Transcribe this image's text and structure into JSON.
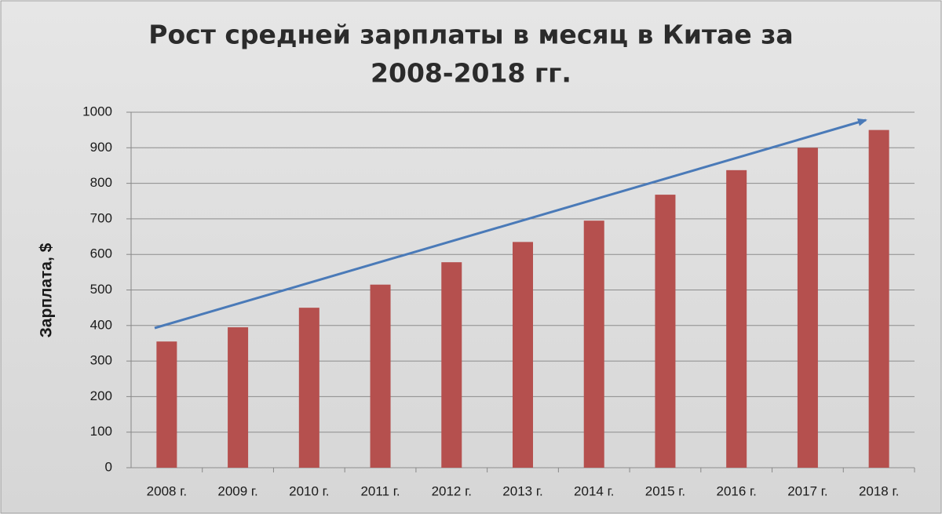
{
  "chart_data": {
    "type": "bar",
    "title": [
      "Рост средней зарплаты в месяц в Китае за",
      "2008-2018 гг."
    ],
    "y_label": "Зарплата, $",
    "categories": [
      "2008 г.",
      "2009 г.",
      "2010 г.",
      "2011 г.",
      "2012 г.",
      "2013 г.",
      "2014 г.",
      "2015 г.",
      "2016 г.",
      "2017 г.",
      "2018 г."
    ],
    "values": [
      355,
      395,
      450,
      515,
      578,
      635,
      695,
      768,
      837,
      900,
      950
    ],
    "color": "#b5504e",
    "ylim": [
      0,
      1000
    ],
    "yticks": [
      0,
      100,
      200,
      300,
      400,
      500,
      600,
      700,
      800,
      900,
      1000
    ],
    "grid": true
  }
}
